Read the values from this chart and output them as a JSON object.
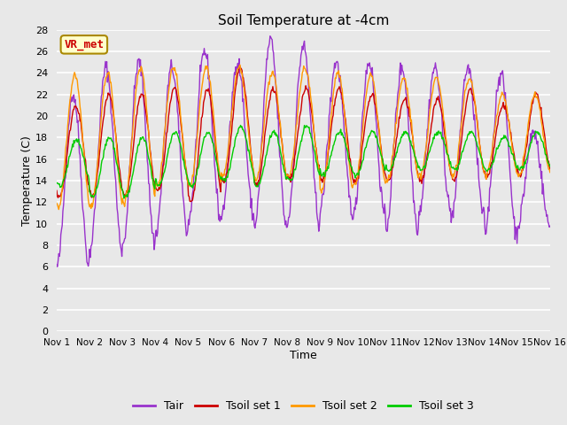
{
  "title": "Soil Temperature at -4cm",
  "xlabel": "Time",
  "ylabel": "Temperature (C)",
  "ylim": [
    0,
    28
  ],
  "yticks": [
    0,
    2,
    4,
    6,
    8,
    10,
    12,
    14,
    16,
    18,
    20,
    22,
    24,
    26,
    28
  ],
  "num_days": 15,
  "xtick_labels": [
    "Nov 1",
    "Nov 2",
    "Nov 3",
    "Nov 4",
    "Nov 5",
    "Nov 6",
    "Nov 7",
    "Nov 8",
    "Nov 9",
    "Nov 10",
    "Nov 11",
    "Nov 12",
    "Nov 13",
    "Nov 14",
    "Nov 15",
    "Nov 16"
  ],
  "colors": {
    "Tair": "#9933cc",
    "Tsoil1": "#cc0000",
    "Tsoil2": "#ff9900",
    "Tsoil3": "#00cc00"
  },
  "legend_labels": [
    "Tair",
    "Tsoil set 1",
    "Tsoil set 2",
    "Tsoil set 3"
  ],
  "annotation_text": "VR_met",
  "annotation_color": "#cc0000",
  "annotation_bg": "#ffffcc",
  "plot_bg": "#e8e8e8",
  "grid_color": "#ffffff",
  "tair_daily_min": [
    6.0,
    7.5,
    8.0,
    9.0,
    10.3,
    10.7,
    9.7,
    10.0,
    11.2,
    10.5,
    9.5,
    11.0,
    10.7,
    9.0,
    9.8
  ],
  "tair_daily_max": [
    22.0,
    24.5,
    25.0,
    24.5,
    26.0,
    25.0,
    27.0,
    26.5,
    25.0,
    25.0,
    24.5,
    24.5,
    24.5,
    24.0,
    18.5
  ],
  "tsoil1_daily_min": [
    12.5,
    12.5,
    12.5,
    13.0,
    12.0,
    13.8,
    13.5,
    14.2,
    14.0,
    13.8,
    14.0,
    14.0,
    14.0,
    14.5,
    14.5
  ],
  "tsoil1_daily_max": [
    21.0,
    22.0,
    22.0,
    22.5,
    22.5,
    24.5,
    22.5,
    22.5,
    22.5,
    22.0,
    21.5,
    21.5,
    22.5,
    21.0,
    22.0
  ],
  "tsoil2_daily_min": [
    11.5,
    11.5,
    12.0,
    13.5,
    13.5,
    14.5,
    14.0,
    14.5,
    13.0,
    13.5,
    14.0,
    14.5,
    14.5,
    14.5,
    14.5
  ],
  "tsoil2_daily_max": [
    23.8,
    24.0,
    24.5,
    24.5,
    24.5,
    24.5,
    24.0,
    24.5,
    24.0,
    23.8,
    23.5,
    23.5,
    23.5,
    22.0,
    22.0
  ],
  "tsoil3_daily_min": [
    13.5,
    12.5,
    12.5,
    13.5,
    13.5,
    14.0,
    13.5,
    14.0,
    14.5,
    14.5,
    15.0,
    15.0,
    15.0,
    15.0,
    15.0
  ],
  "tsoil3_daily_max": [
    17.8,
    18.0,
    18.0,
    18.5,
    18.5,
    19.0,
    18.5,
    19.0,
    18.5,
    18.5,
    18.5,
    18.5,
    18.5,
    18.0,
    18.5
  ]
}
